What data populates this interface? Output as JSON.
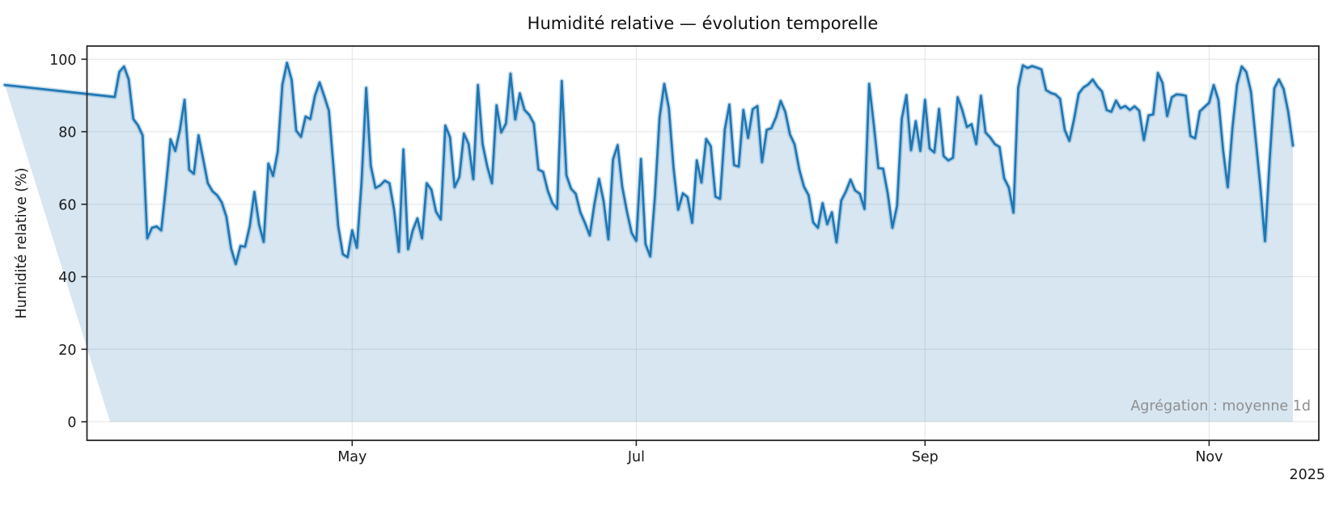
{
  "figure": {
    "title": "Humidité relative — évolution temporelle",
    "ylabel": "Humidité relative (%)",
    "annotation": "Agrégation : moyenne 1d",
    "year_label": "2025"
  },
  "chart_data": {
    "type": "area",
    "title": "Humidité relative — évolution temporelle",
    "xlabel": "",
    "ylabel": "Humidité relative (%)",
    "series_name": "Humidité relative (%)",
    "x_start_date": "2025-03-10",
    "x_end_date": "2025-11-19",
    "x_step_days": 1,
    "grid": true,
    "legend": false,
    "ylim": [
      -5.1,
      103.7
    ],
    "y_ticks": [
      0,
      20,
      40,
      60,
      80,
      100
    ],
    "x_ticks": [
      {
        "day": 52,
        "label": "May"
      },
      {
        "day": 113,
        "label": "Jul"
      },
      {
        "day": 175,
        "label": "Sep"
      },
      {
        "day": 236,
        "label": "Nov"
      }
    ],
    "line_color": "#1f77b4",
    "fill_opacity": 0.18,
    "halo_opacity": 0.25,
    "grid_color": "#e6e6e6",
    "spine_color": "#262626",
    "text_color": "#1a1a1a",
    "annotation_color": "#8f8f8f",
    "values": [
      92.9,
      89.6,
      96.5,
      98.0,
      94.5,
      83.5,
      81.8,
      79.0,
      50.6,
      53.5,
      53.9,
      52.8,
      65.0,
      77.9,
      74.7,
      80.5,
      88.8,
      69.5,
      68.4,
      79.0,
      72.5,
      65.8,
      63.6,
      62.5,
      60.5,
      56.5,
      47.8,
      43.5,
      48.5,
      48.3,
      54.0,
      63.4,
      54.5,
      49.6,
      71.2,
      67.8,
      74.5,
      93.0,
      99.0,
      94.3,
      80.3,
      78.6,
      84.2,
      83.5,
      90.0,
      93.6,
      89.8,
      85.8,
      70.0,
      54.0,
      46.2,
      45.4,
      52.8,
      48.0,
      66.0,
      92.1,
      70.6,
      64.5,
      65.2,
      66.5,
      65.8,
      58.5,
      46.9,
      75.1,
      47.6,
      52.8,
      56.1,
      50.6,
      65.8,
      64.0,
      58.0,
      55.8,
      81.7,
      78.5,
      64.7,
      67.5,
      79.5,
      76.6,
      66.9,
      92.9,
      76.6,
      70.5,
      65.8,
      87.3,
      79.8,
      82.3,
      96.0,
      83.4,
      90.6,
      86.0,
      84.7,
      82.3,
      69.6,
      68.9,
      63.7,
      60.3,
      58.7,
      94.0,
      68.0,
      64.3,
      62.9,
      57.8,
      54.8,
      51.4,
      60.0,
      67.0,
      60.8,
      50.3,
      72.3,
      76.3,
      64.8,
      58.0,
      52.1,
      49.9,
      72.5,
      49.0,
      45.6,
      62.0,
      84.0,
      93.2,
      86.5,
      70.0,
      58.5,
      63.0,
      62.0,
      54.9,
      72.1,
      66.0,
      78.0,
      76.0,
      62.1,
      61.5,
      80.6,
      87.5,
      70.8,
      70.4,
      86.0,
      78.3,
      86.2,
      87.1,
      71.6,
      80.5,
      81.0,
      84.0,
      88.5,
      85.5,
      79.2,
      76.5,
      69.6,
      64.9,
      62.5,
      55.0,
      53.5,
      60.3,
      54.5,
      57.8,
      49.5,
      61.0,
      63.5,
      66.8,
      63.8,
      62.9,
      58.7,
      93.2,
      82.0,
      70.0,
      69.8,
      63.0,
      53.5,
      59.6,
      83.5,
      90.1,
      74.9,
      82.9,
      74.7,
      88.8,
      75.4,
      74.3,
      86.3,
      73.3,
      72.1,
      72.8,
      89.5,
      86.0,
      81.3,
      82.1,
      76.6,
      89.9,
      79.8,
      78.4,
      76.6,
      75.8,
      67.2,
      64.6,
      57.7,
      92.1,
      98.3,
      97.6,
      98.1,
      97.7,
      97.2,
      91.5,
      90.7,
      90.3,
      89.1,
      80.5,
      77.5,
      83.5,
      90.5,
      92.2,
      93.0,
      94.4,
      92.5,
      91.1,
      86.0,
      85.5,
      88.6,
      86.5,
      87.1,
      86.0,
      87.0,
      85.8,
      77.7,
      84.5,
      84.8,
      96.2,
      93.5,
      84.3,
      89.5,
      90.3,
      90.2,
      89.9,
      78.8,
      78.2,
      85.6,
      86.8,
      88.0,
      92.9,
      88.8,
      75.0,
      64.7,
      81.0,
      93.0,
      98.0,
      96.5,
      91.0,
      78.0,
      65.0,
      49.8,
      72.0,
      92.0,
      94.4,
      91.8,
      85.5,
      76.2
    ]
  }
}
